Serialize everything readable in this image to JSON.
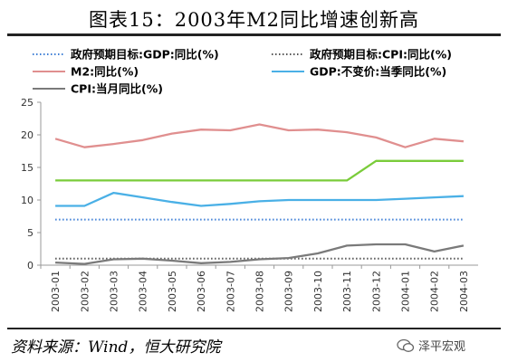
{
  "title": "图表15：2003年M2同比增速创新高",
  "source": "资料来源：Wind，恒大研究院",
  "watermark": "泽平宏观",
  "colors": {
    "gdp_target": "#3f7fd6",
    "cpi_target": "#555555",
    "m2": "#e08f8f",
    "gdp": "#4ab0e6",
    "cpi": "#7a7a7a",
    "green_target": "#7acc3a"
  },
  "chart_data": {
    "type": "line",
    "x": [
      "2003-01",
      "2003-02",
      "2003-03",
      "2003-04",
      "2003-05",
      "2003-06",
      "2003-07",
      "2003-08",
      "2003-09",
      "2003-10",
      "2003-11",
      "2003-12",
      "2004-01",
      "2004-02",
      "2004-03"
    ],
    "ylim": [
      0,
      25
    ],
    "yticks": [
      0,
      5,
      10,
      15,
      20,
      25
    ],
    "series": [
      {
        "name": "政府预期目标:GDP:同比(%)",
        "style": "dotted",
        "color_key": "gdp_target",
        "values": [
          7,
          7,
          7,
          7,
          7,
          7,
          7,
          7,
          7,
          7,
          7,
          7,
          7,
          7,
          7
        ]
      },
      {
        "name": "政府预期目标:CPI:同比(%)",
        "style": "dotted",
        "color_key": "cpi_target",
        "values": [
          1,
          1,
          1,
          1,
          1,
          1,
          1,
          1,
          1,
          1,
          1,
          1,
          1,
          1,
          1
        ]
      },
      {
        "name": "M2:同比(%)",
        "style": "solid",
        "color_key": "m2",
        "values": [
          19.4,
          18.1,
          18.6,
          19.2,
          20.2,
          20.8,
          20.7,
          21.6,
          20.7,
          20.8,
          20.4,
          19.6,
          18.1,
          19.4,
          19.0
        ]
      },
      {
        "name": "GDP:不变价:当季同比(%)",
        "style": "solid",
        "color_key": "gdp",
        "values": [
          9.1,
          9.1,
          11.1,
          10.4,
          9.7,
          9.1,
          9.4,
          9.8,
          10.0,
          10.0,
          10.0,
          10.0,
          10.2,
          10.4,
          10.6
        ]
      },
      {
        "name": "CPI:当月同比(%)",
        "style": "solid",
        "color_key": "cpi",
        "values": [
          0.4,
          0.2,
          0.9,
          1.0,
          0.7,
          0.3,
          0.5,
          0.9,
          1.1,
          1.8,
          3.0,
          3.2,
          3.2,
          2.1,
          3.0
        ]
      },
      {
        "name": "",
        "style": "solid",
        "color_key": "green_target",
        "values": [
          13,
          13,
          13,
          13,
          13,
          13,
          13,
          13,
          13,
          13,
          13,
          16,
          16,
          16,
          16
        ]
      }
    ],
    "legend": [
      {
        "label": "政府预期目标:GDP:同比(%)",
        "series": 0
      },
      {
        "label": "政府预期目标:CPI:同比(%)",
        "series": 1
      },
      {
        "label": "M2:同比(%)",
        "series": 2
      },
      {
        "label": "GDP:不变价:当季同比(%)",
        "series": 3
      },
      {
        "label": "CPI:当月同比(%)",
        "series": 4
      }
    ]
  }
}
